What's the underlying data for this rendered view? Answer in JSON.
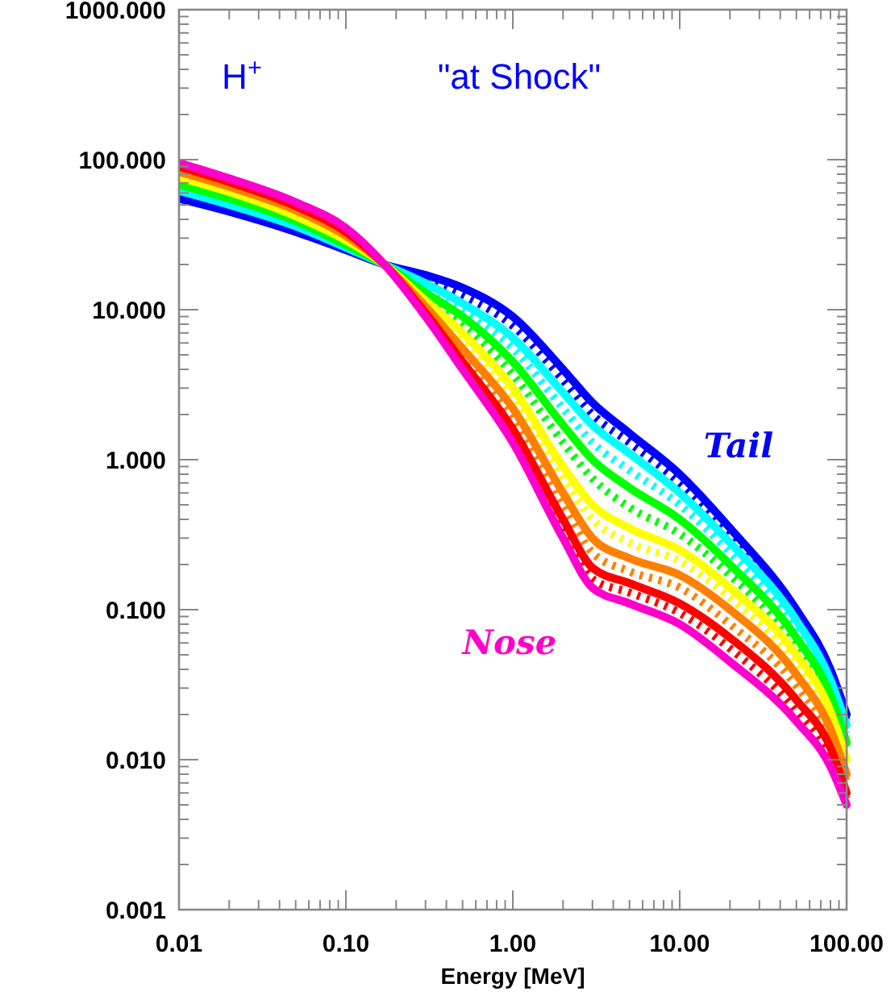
{
  "chart_data": {
    "type": "line",
    "xlabel": "Energy [MeV]",
    "log": "xy",
    "grid": false,
    "xlim": [
      0.01,
      100
    ],
    "ylim": [
      0.001,
      1000
    ],
    "xticks": [
      {
        "value": 0.01,
        "label": "0.01"
      },
      {
        "value": 0.1,
        "label": "0.10"
      },
      {
        "value": 1,
        "label": "1.00"
      },
      {
        "value": 10,
        "label": "10.00"
      },
      {
        "value": 100,
        "label": "100.00"
      }
    ],
    "yticks": [
      {
        "value": 0.001,
        "label": "0.001"
      },
      {
        "value": 0.01,
        "label": "0.010"
      },
      {
        "value": 0.1,
        "label": "0.100"
      },
      {
        "value": 1,
        "label": "1.000"
      },
      {
        "value": 10,
        "label": "10.000"
      },
      {
        "value": 100,
        "label": "100.000"
      },
      {
        "value": 1000,
        "label": "1000.000"
      }
    ],
    "x": [
      0.01,
      0.02,
      0.05,
      0.1,
      0.17,
      0.3,
      0.5,
      1,
      2,
      3,
      5,
      10,
      20,
      50,
      80,
      100
    ],
    "annotations": [
      "H$^{+}$",
      "\"at Shock\"",
      "Tail",
      "Nose"
    ],
    "series": [
      {
        "color": "#0000ff",
        "line_style": "solid",
        "values": [
          55,
          45,
          33,
          25,
          20,
          17,
          14,
          9,
          4,
          2.4,
          1.5,
          0.8,
          0.35,
          0.1,
          0.04,
          0.02
        ]
      },
      {
        "color": "#0000ff",
        "line_style": "dotted",
        "values": [
          58,
          47,
          34,
          25.5,
          20,
          16,
          12.5,
          7.8,
          3.4,
          2.0,
          1.3,
          0.7,
          0.31,
          0.092,
          0.037,
          0.018
        ]
      },
      {
        "color": "#00ffff",
        "line_style": "solid",
        "values": [
          62,
          50,
          36,
          26,
          20,
          15,
          11,
          6.5,
          2.8,
          1.7,
          1.1,
          0.6,
          0.28,
          0.085,
          0.034,
          0.017
        ]
      },
      {
        "color": "#00ffff",
        "line_style": "dotted",
        "values": [
          65,
          52,
          37,
          26.5,
          20,
          14,
          10,
          5.5,
          2.2,
          1.3,
          0.85,
          0.5,
          0.24,
          0.075,
          0.03,
          0.015
        ]
      },
      {
        "color": "#00ff00",
        "line_style": "solid",
        "values": [
          68,
          55,
          39,
          27,
          20,
          13,
          9,
          4.5,
          1.7,
          1.0,
          0.65,
          0.4,
          0.2,
          0.065,
          0.027,
          0.013
        ]
      },
      {
        "color": "#00ff00",
        "line_style": "dotted",
        "values": [
          72,
          58,
          40,
          28,
          20,
          12,
          8,
          3.7,
          1.3,
          0.75,
          0.48,
          0.32,
          0.17,
          0.057,
          0.024,
          0.012
        ]
      },
      {
        "color": "#ffff00",
        "line_style": "solid",
        "values": [
          76,
          61,
          42,
          29,
          20,
          11.5,
          7,
          3,
          0.9,
          0.5,
          0.35,
          0.25,
          0.14,
          0.05,
          0.021,
          0.01
        ]
      },
      {
        "color": "#ffff00",
        "line_style": "dotted",
        "values": [
          80,
          64,
          44,
          30,
          20,
          11,
          6.2,
          2.6,
          0.75,
          0.4,
          0.28,
          0.21,
          0.12,
          0.043,
          0.018,
          0.009
        ]
      },
      {
        "color": "#ff8000",
        "line_style": "solid",
        "values": [
          83,
          66,
          46,
          31,
          20,
          10.5,
          5.5,
          2.2,
          0.6,
          0.3,
          0.22,
          0.17,
          0.1,
          0.037,
          0.016,
          0.008
        ]
      },
      {
        "color": "#ff8000",
        "line_style": "dotted",
        "values": [
          87,
          69,
          48,
          32,
          20,
          10,
          5,
          1.9,
          0.5,
          0.24,
          0.18,
          0.14,
          0.08,
          0.031,
          0.014,
          0.007
        ]
      },
      {
        "color": "#ff0000",
        "line_style": "solid",
        "values": [
          90,
          71,
          49,
          33,
          20,
          9.5,
          4.5,
          1.6,
          0.4,
          0.19,
          0.15,
          0.11,
          0.065,
          0.025,
          0.012,
          0.006
        ]
      },
      {
        "color": "#ff0000",
        "line_style": "dotted",
        "values": [
          93,
          73,
          51,
          34,
          20,
          9.2,
          4.2,
          1.45,
          0.35,
          0.16,
          0.13,
          0.095,
          0.055,
          0.021,
          0.01,
          0.0055
        ]
      },
      {
        "color": "#ff00cc",
        "line_style": "solid",
        "values": [
          95,
          75,
          52,
          35,
          20,
          9,
          4,
          1.3,
          0.3,
          0.14,
          0.11,
          0.08,
          0.045,
          0.018,
          0.009,
          0.005
        ]
      }
    ]
  }
}
